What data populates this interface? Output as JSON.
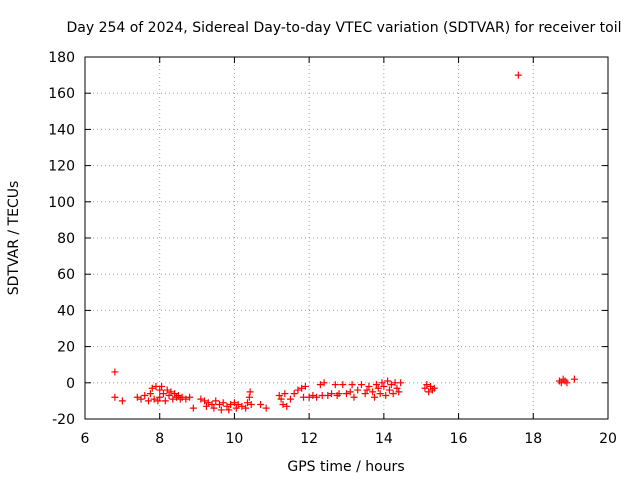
{
  "chart_data": {
    "type": "scatter",
    "title": "Day 254 of 2024, Sidereal Day-to-day VTEC variation (SDTVAR) for receiver toil",
    "xlabel": "GPS time / hours",
    "ylabel": "SDTVAR / TECUs",
    "xlim": [
      6,
      20
    ],
    "ylim": [
      -20,
      180
    ],
    "xticks": [
      "6",
      "8",
      "10",
      "12",
      "14",
      "16",
      "18",
      "20"
    ],
    "yticks": [
      "-20",
      "0",
      "20",
      "40",
      "60",
      "80",
      "100",
      "120",
      "140",
      "160",
      "180"
    ],
    "grid": true,
    "marker": "plus",
    "color": "#ff0000",
    "series": [
      {
        "values": [
          [
            6.8,
            6
          ],
          [
            6.8,
            -8
          ],
          [
            7.0,
            -10
          ],
          [
            7.4,
            -8
          ],
          [
            7.5,
            -9
          ],
          [
            7.6,
            -7
          ],
          [
            7.7,
            -10
          ],
          [
            7.75,
            -6
          ],
          [
            7.8,
            -3
          ],
          [
            7.85,
            -9
          ],
          [
            7.9,
            -2
          ],
          [
            7.95,
            -10
          ],
          [
            8.0,
            -4
          ],
          [
            8.0,
            -8
          ],
          [
            8.05,
            -2
          ],
          [
            8.1,
            -6
          ],
          [
            8.15,
            -10
          ],
          [
            8.2,
            -4
          ],
          [
            8.25,
            -7
          ],
          [
            8.3,
            -5
          ],
          [
            8.35,
            -9
          ],
          [
            8.4,
            -6
          ],
          [
            8.45,
            -8
          ],
          [
            8.5,
            -7
          ],
          [
            8.55,
            -9
          ],
          [
            8.6,
            -8
          ],
          [
            8.7,
            -9
          ],
          [
            8.8,
            -8
          ],
          [
            8.9,
            -14
          ],
          [
            9.1,
            -9
          ],
          [
            9.2,
            -10
          ],
          [
            9.25,
            -13
          ],
          [
            9.3,
            -11
          ],
          [
            9.4,
            -12
          ],
          [
            9.45,
            -14
          ],
          [
            9.5,
            -10
          ],
          [
            9.6,
            -12
          ],
          [
            9.65,
            -15
          ],
          [
            9.7,
            -11
          ],
          [
            9.8,
            -13
          ],
          [
            9.85,
            -15
          ],
          [
            9.9,
            -12
          ],
          [
            10.0,
            -11
          ],
          [
            10.05,
            -14
          ],
          [
            10.1,
            -12
          ],
          [
            10.2,
            -13
          ],
          [
            10.3,
            -14
          ],
          [
            10.35,
            -11
          ],
          [
            10.4,
            -8
          ],
          [
            10.42,
            -5
          ],
          [
            10.45,
            -12
          ],
          [
            10.7,
            -12
          ],
          [
            10.85,
            -14
          ],
          [
            11.2,
            -7
          ],
          [
            11.25,
            -9
          ],
          [
            11.3,
            -12
          ],
          [
            11.35,
            -6
          ],
          [
            11.4,
            -13
          ],
          [
            11.5,
            -9
          ],
          [
            11.6,
            -6
          ],
          [
            11.7,
            -4
          ],
          [
            11.8,
            -3
          ],
          [
            11.85,
            -8
          ],
          [
            11.9,
            -2
          ],
          [
            12.0,
            -8
          ],
          [
            12.1,
            -7
          ],
          [
            12.2,
            -8
          ],
          [
            12.3,
            -1
          ],
          [
            12.35,
            -7
          ],
          [
            12.4,
            0
          ],
          [
            12.5,
            -7
          ],
          [
            12.6,
            -6
          ],
          [
            12.7,
            -1
          ],
          [
            12.75,
            -7
          ],
          [
            12.8,
            -6
          ],
          [
            12.9,
            -1
          ],
          [
            13.0,
            -6
          ],
          [
            13.1,
            -5
          ],
          [
            13.15,
            -1
          ],
          [
            13.2,
            -8
          ],
          [
            13.3,
            -4
          ],
          [
            13.4,
            -1
          ],
          [
            13.5,
            -6
          ],
          [
            13.55,
            -4
          ],
          [
            13.6,
            -2
          ],
          [
            13.7,
            -5
          ],
          [
            13.75,
            -8
          ],
          [
            13.8,
            -1
          ],
          [
            13.85,
            -3
          ],
          [
            13.9,
            -6
          ],
          [
            13.95,
            0
          ],
          [
            14.0,
            -2
          ],
          [
            14.05,
            -7
          ],
          [
            14.1,
            1
          ],
          [
            14.15,
            -4
          ],
          [
            14.2,
            -1
          ],
          [
            14.25,
            -6
          ],
          [
            14.3,
            0
          ],
          [
            14.35,
            -3
          ],
          [
            14.4,
            -5
          ],
          [
            14.45,
            0
          ],
          [
            15.1,
            -3
          ],
          [
            15.15,
            -1
          ],
          [
            15.2,
            -5
          ],
          [
            15.25,
            -2
          ],
          [
            15.3,
            -4
          ],
          [
            15.35,
            -3
          ],
          [
            17.6,
            170
          ],
          [
            18.7,
            1
          ],
          [
            18.75,
            0
          ],
          [
            18.8,
            2
          ],
          [
            18.85,
            1
          ],
          [
            18.9,
            0
          ],
          [
            19.1,
            2
          ]
        ]
      }
    ]
  }
}
